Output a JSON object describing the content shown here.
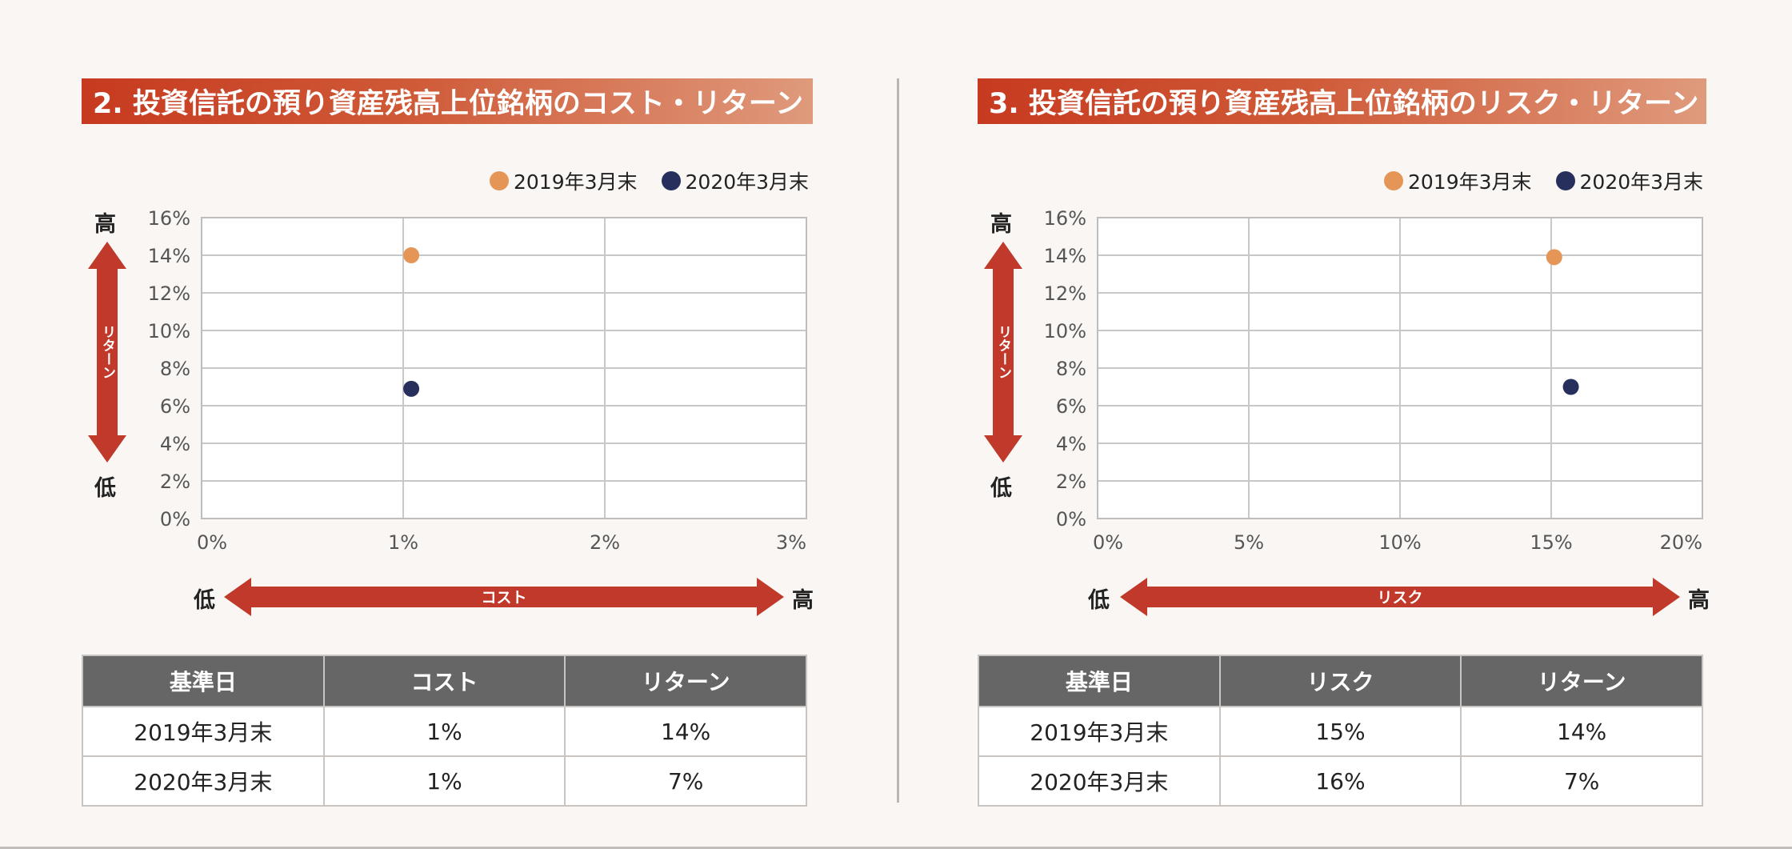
{
  "panels": [
    {
      "title": "2. 投資信託の預り資産残高上位銘柄のコスト・リターン",
      "legend": [
        {
          "label": "2019年3月末",
          "color": "#e59556"
        },
        {
          "label": "2020年3月末",
          "color": "#27305c"
        }
      ],
      "y_axis_label": "リターン",
      "y_high": "高",
      "y_low": "低",
      "x_axis_label": "コスト",
      "x_low": "低",
      "x_high": "高",
      "table": {
        "headers": [
          "基準日",
          "コスト",
          "リターン"
        ],
        "rows": [
          [
            "2019年3月末",
            "1%",
            "14%"
          ],
          [
            "2020年3月末",
            "1%",
            "7%"
          ]
        ]
      }
    },
    {
      "title": "3. 投資信託の預り資産残高上位銘柄のリスク・リターン",
      "legend": [
        {
          "label": "2019年3月末",
          "color": "#e59556"
        },
        {
          "label": "2020年3月末",
          "color": "#27305c"
        }
      ],
      "y_axis_label": "リターン",
      "y_high": "高",
      "y_low": "低",
      "x_axis_label": "リスク",
      "x_low": "低",
      "x_high": "高",
      "table": {
        "headers": [
          "基準日",
          "リスク",
          "リターン"
        ],
        "rows": [
          [
            "2019年3月末",
            "15%",
            "14%"
          ],
          [
            "2020年3月末",
            "16%",
            "7%"
          ]
        ]
      }
    }
  ],
  "colors": {
    "accent": "#c0392b",
    "orange": "#e59556",
    "navy": "#27305c",
    "header_gray": "#666666"
  },
  "chart_data": [
    {
      "type": "scatter",
      "title": "2. 投資信託の預り資産残高上位銘柄のコスト・リターン",
      "xlabel": "コスト",
      "ylabel": "リターン",
      "xlim": [
        0,
        3
      ],
      "ylim": [
        0,
        16
      ],
      "xticks": [
        0,
        1,
        2,
        3
      ],
      "xtick_labels": [
        "0%",
        "1%",
        "2%",
        "3%"
      ],
      "yticks": [
        0,
        2,
        4,
        6,
        8,
        10,
        12,
        14,
        16
      ],
      "ytick_labels": [
        "0%",
        "2%",
        "4%",
        "6%",
        "8%",
        "10%",
        "12%",
        "14%",
        "16%"
      ],
      "grid": true,
      "legend_position": "top-right",
      "series": [
        {
          "name": "2019年3月末",
          "color": "#e59556",
          "points": [
            {
              "x": 1.04,
              "y": 14.0
            }
          ]
        },
        {
          "name": "2020年3月末",
          "color": "#27305c",
          "points": [
            {
              "x": 1.04,
              "y": 6.9
            }
          ]
        }
      ]
    },
    {
      "type": "scatter",
      "title": "3. 投資信託の預り資産残高上位銘柄のリスク・リターン",
      "xlabel": "リスク",
      "ylabel": "リターン",
      "xlim": [
        0,
        20
      ],
      "ylim": [
        0,
        16
      ],
      "xticks": [
        0,
        5,
        10,
        15,
        20
      ],
      "xtick_labels": [
        "0%",
        "5%",
        "10%",
        "15%",
        "20%"
      ],
      "yticks": [
        0,
        2,
        4,
        6,
        8,
        10,
        12,
        14,
        16
      ],
      "ytick_labels": [
        "0%",
        "2%",
        "4%",
        "6%",
        "8%",
        "10%",
        "12%",
        "14%",
        "16%"
      ],
      "grid": true,
      "legend_position": "top-right",
      "series": [
        {
          "name": "2019年3月末",
          "color": "#e59556",
          "points": [
            {
              "x": 15.1,
              "y": 13.9
            }
          ]
        },
        {
          "name": "2020年3月末",
          "color": "#27305c",
          "points": [
            {
              "x": 15.65,
              "y": 7.0
            }
          ]
        }
      ]
    }
  ]
}
